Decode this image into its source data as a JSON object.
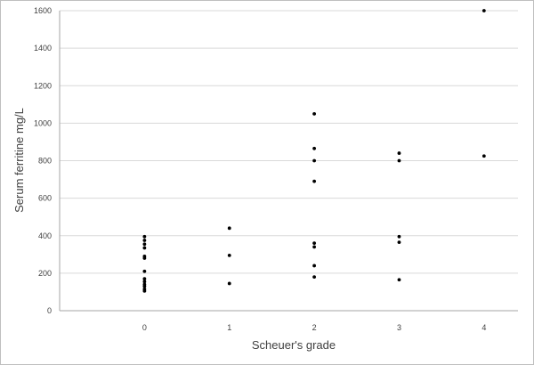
{
  "chart_data": {
    "type": "scatter",
    "title": "",
    "xlabel": "Scheuer's grade",
    "ylabel": "Serum ferritine  mg/L",
    "xlim": [
      -1,
      4.4
    ],
    "ylim": [
      0,
      1600
    ],
    "x_ticks": [
      "0",
      "1",
      "2",
      "3",
      "4"
    ],
    "y_ticks": [
      "0",
      "200",
      "400",
      "600",
      "800",
      "1000",
      "1200",
      "1400",
      "1600"
    ],
    "grid": "horizontal",
    "legend": "none",
    "marker_color": "#000000",
    "grid_color": "#d9d9d9",
    "series": [
      {
        "points": [
          [
            0,
            395
          ],
          [
            0,
            375
          ],
          [
            0,
            355
          ],
          [
            0,
            335
          ],
          [
            0,
            290
          ],
          [
            0,
            280
          ],
          [
            0,
            210
          ],
          [
            0,
            170
          ],
          [
            0,
            155
          ],
          [
            0,
            140
          ],
          [
            0,
            130
          ],
          [
            0,
            115
          ],
          [
            0,
            105
          ],
          [
            1,
            440
          ],
          [
            1,
            295
          ],
          [
            1,
            145
          ],
          [
            2,
            1050
          ],
          [
            2,
            865
          ],
          [
            2,
            800
          ],
          [
            2,
            690
          ],
          [
            2,
            360
          ],
          [
            2,
            340
          ],
          [
            2,
            240
          ],
          [
            2,
            180
          ],
          [
            3,
            840
          ],
          [
            3,
            800
          ],
          [
            3,
            395
          ],
          [
            3,
            365
          ],
          [
            3,
            165
          ],
          [
            4,
            1600
          ],
          [
            4,
            825
          ]
        ]
      }
    ]
  }
}
